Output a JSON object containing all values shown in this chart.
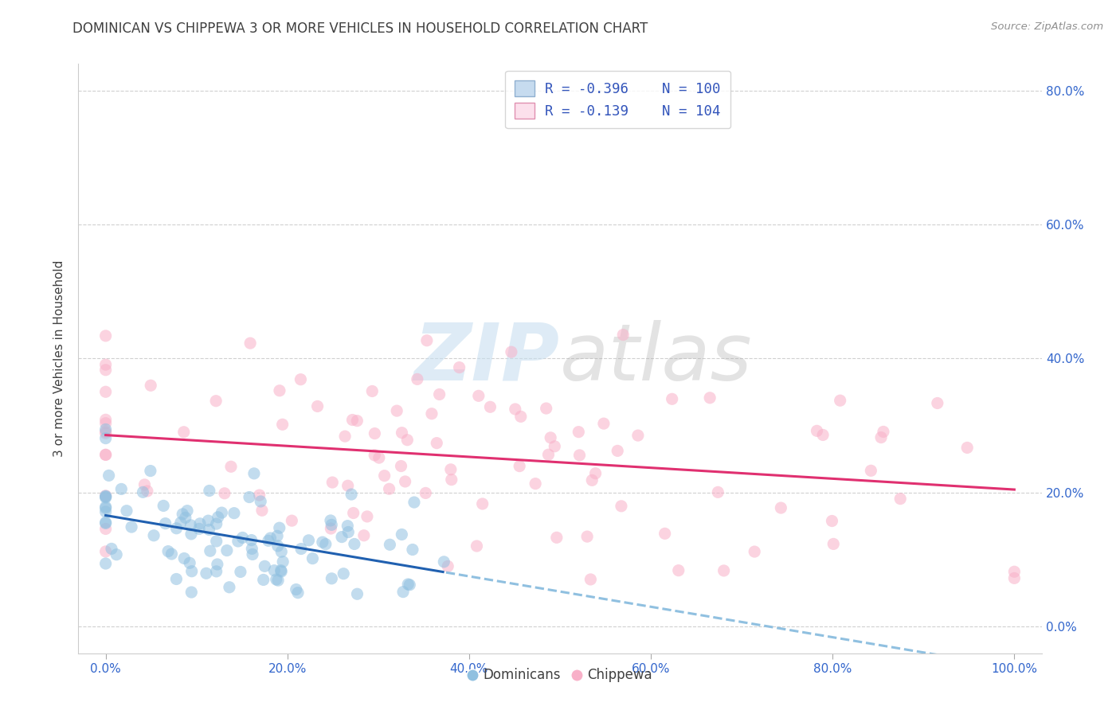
{
  "title": "DOMINICAN VS CHIPPEWA 3 OR MORE VEHICLES IN HOUSEHOLD CORRELATION CHART",
  "source": "Source: ZipAtlas.com",
  "ylabel_label": "3 or more Vehicles in Household",
  "legend_labels": [
    "Dominicans",
    "Chippewa"
  ],
  "blue_color": "#7fbfdf",
  "pink_color": "#f4a0b8",
  "blue_line_color": "#2060b0",
  "pink_line_color": "#e03070",
  "watermark_color": "#c8dff0",
  "title_color": "#404040",
  "axis_label_color": "#3366cc",
  "source_color": "#909090",
  "grid_color": "#d0d0d0",
  "legend_r_blue": "R = -0.396",
  "legend_n_blue": "N = 100",
  "legend_r_pink": "R = -0.139",
  "legend_n_pink": "N = 104",
  "blue_fill": "#c6dbef",
  "pink_fill": "#fce0ec",
  "blue_dot_color": "#90c0e0",
  "pink_dot_color": "#f8b0c8",
  "n_blue": 100,
  "n_pink": 104,
  "r_blue": -0.396,
  "r_pink": -0.139,
  "xlim": [
    0,
    100
  ],
  "ylim": [
    0,
    80
  ],
  "xticks": [
    0,
    20,
    40,
    60,
    80,
    100
  ],
  "yticks": [
    0,
    20,
    40,
    60,
    80
  ],
  "xtick_labels": [
    "0.0%",
    "20.0%",
    "40.0%",
    "60.0%",
    "80.0%",
    "100.0%"
  ],
  "ytick_labels": [
    "0.0%",
    "20.0%",
    "40.0%",
    "60.0%",
    "80.0%"
  ],
  "blue_x_mean": 15,
  "blue_x_std": 12,
  "blue_y_mean": 13,
  "blue_y_std": 5,
  "pink_x_mean": 38,
  "pink_x_std": 28,
  "pink_y_mean": 26,
  "pink_y_std": 9,
  "blue_seed": 42,
  "pink_seed": 7,
  "dot_size": 120,
  "dot_alpha": 0.55
}
